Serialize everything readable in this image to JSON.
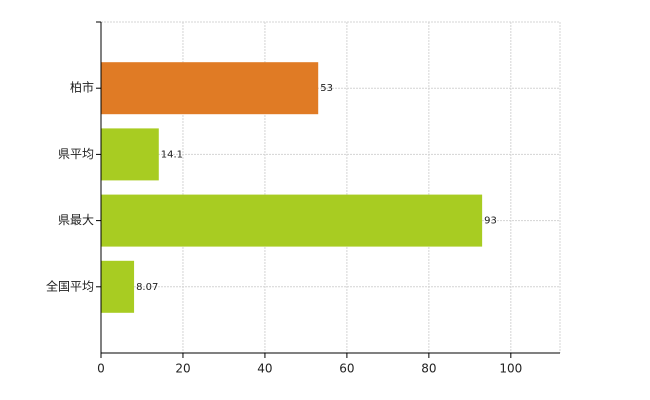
{
  "chart_data": {
    "type": "bar",
    "orientation": "horizontal",
    "categories": [
      "柏市",
      "県平均",
      "県最大",
      "全国平均"
    ],
    "values": [
      53,
      14.1,
      93,
      8.07
    ],
    "colors": [
      "#e07b25",
      "#a8cc22",
      "#a8cc22",
      "#a8cc22"
    ],
    "xlim": [
      0,
      112
    ],
    "xticks": [
      0,
      20,
      40,
      60,
      80,
      100
    ],
    "grid": true
  }
}
